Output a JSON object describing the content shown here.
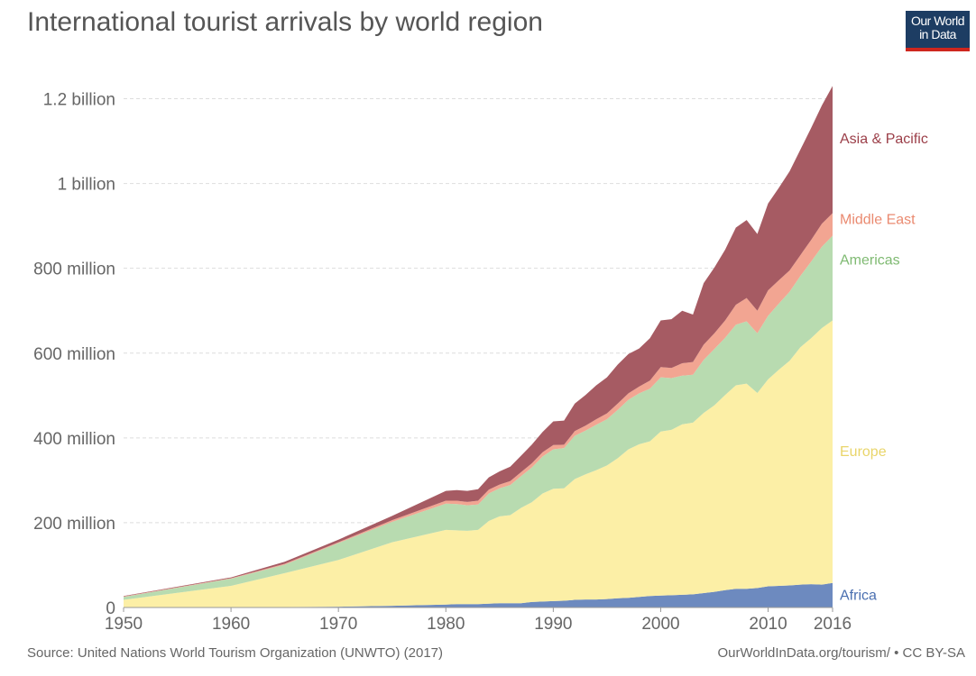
{
  "header": {
    "title": "International tourist arrivals by world region",
    "logo_line1": "Our World",
    "logo_line2": "in Data"
  },
  "footer": {
    "source": "Source: United Nations World Tourism Organization (UNWTO) (2017)",
    "url": "OurWorldInData.org/tourism/ • CC BY-SA"
  },
  "chart_data": {
    "type": "area",
    "stacked": true,
    "title": "International tourist arrivals by world region",
    "x": [
      1950,
      1960,
      1965,
      1970,
      1975,
      1980,
      1981,
      1982,
      1983,
      1984,
      1985,
      1986,
      1987,
      1988,
      1989,
      1990,
      1991,
      1992,
      1993,
      1994,
      1995,
      1996,
      1997,
      1998,
      1999,
      2000,
      2001,
      2002,
      2003,
      2004,
      2005,
      2006,
      2007,
      2008,
      2009,
      2010,
      2011,
      2012,
      2013,
      2014,
      2015,
      2016
    ],
    "xticks": [
      1950,
      1960,
      1970,
      1980,
      1990,
      2000,
      2010,
      2016
    ],
    "ylim": [
      0,
      1250000000
    ],
    "yticks": [
      0,
      200000000,
      400000000,
      600000000,
      800000000,
      1000000000,
      1200000000
    ],
    "ytick_labels": [
      "0",
      "200 million",
      "400 million",
      "600 million",
      "800 million",
      "1 billion",
      "1.2 billion"
    ],
    "grid": true,
    "legend": "labels at right end of each area",
    "series": [
      {
        "name": "Africa",
        "color": "#6d8abf",
        "values": [
          1000000,
          1000000,
          1000000,
          2000000,
          4000000,
          7000000,
          8000000,
          8000000,
          8000000,
          9000000,
          10000000,
          10000000,
          10000000,
          13000000,
          14000000,
          15000000,
          16000000,
          18000000,
          19000000,
          19000000,
          20000000,
          22000000,
          23000000,
          25000000,
          27000000,
          28000000,
          29000000,
          30000000,
          31000000,
          34000000,
          37000000,
          41000000,
          44000000,
          44000000,
          46000000,
          50000000,
          51000000,
          52000000,
          54000000,
          55000000,
          54000000,
          58000000
        ]
      },
      {
        "name": "Europe",
        "color": "#fcefa6",
        "values": [
          17000000,
          50000000,
          80000000,
          110000000,
          150000000,
          176000000,
          174000000,
          173000000,
          175000000,
          195000000,
          205000000,
          208000000,
          225000000,
          235000000,
          255000000,
          265000000,
          265000000,
          285000000,
          295000000,
          305000000,
          315000000,
          330000000,
          350000000,
          360000000,
          365000000,
          387000000,
          390000000,
          402000000,
          405000000,
          425000000,
          440000000,
          460000000,
          480000000,
          484000000,
          460000000,
          488000000,
          510000000,
          530000000,
          560000000,
          580000000,
          605000000,
          619000000
        ]
      },
      {
        "name": "Americas",
        "color": "#b8dbb0",
        "values": [
          7000000,
          17000000,
          20000000,
          40000000,
          48000000,
          62000000,
          62000000,
          60000000,
          60000000,
          65000000,
          66000000,
          71000000,
          75000000,
          82000000,
          87000000,
          93000000,
          95000000,
          102000000,
          103000000,
          107000000,
          109000000,
          114000000,
          117000000,
          120000000,
          124000000,
          128000000,
          122000000,
          115000000,
          113000000,
          125000000,
          133000000,
          135000000,
          143000000,
          147000000,
          141000000,
          150000000,
          156000000,
          163000000,
          168000000,
          181000000,
          192000000,
          200000000
        ]
      },
      {
        "name": "Middle East",
        "color": "#f2a592",
        "values": [
          1000000,
          1000000,
          2000000,
          2000000,
          4000000,
          7000000,
          8000000,
          8000000,
          9000000,
          9000000,
          9000000,
          9000000,
          9000000,
          10000000,
          10000000,
          10000000,
          8000000,
          11000000,
          12000000,
          13000000,
          14000000,
          15000000,
          15000000,
          16000000,
          19000000,
          24000000,
          24000000,
          29000000,
          30000000,
          36000000,
          37000000,
          41000000,
          47000000,
          55000000,
          53000000,
          60000000,
          55000000,
          50000000,
          49000000,
          51000000,
          54000000,
          53000000
        ]
      },
      {
        "name": "Asia & Pacific",
        "color": "#a65b63",
        "values": [
          1000000,
          2000000,
          5000000,
          6000000,
          10000000,
          23000000,
          25000000,
          26000000,
          27000000,
          29000000,
          31000000,
          34000000,
          39000000,
          44000000,
          48000000,
          56000000,
          57000000,
          65000000,
          72000000,
          80000000,
          85000000,
          92000000,
          93000000,
          90000000,
          100000000,
          110000000,
          115000000,
          124000000,
          112000000,
          145000000,
          155000000,
          167000000,
          182000000,
          184000000,
          181000000,
          205000000,
          218000000,
          234000000,
          249000000,
          264000000,
          279000000,
          300000000
        ]
      }
    ]
  }
}
